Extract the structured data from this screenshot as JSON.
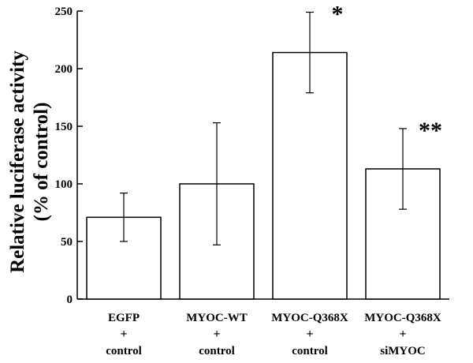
{
  "chart_data": {
    "type": "bar",
    "ylabel_line1": "Relative luciferase activity",
    "ylabel_line2": "(% of control)",
    "ylim": [
      0,
      250
    ],
    "yticks": [
      0,
      50,
      100,
      150,
      200,
      250
    ],
    "grid": false,
    "categories": [
      {
        "top": "EGFP",
        "mid": "+",
        "bottom": "control"
      },
      {
        "top": "MYOC-WT",
        "mid": "+",
        "bottom": "control"
      },
      {
        "top": "MYOC-Q368X",
        "mid": "+",
        "bottom": "control"
      },
      {
        "top": "MYOC-Q368X",
        "mid": "+",
        "bottom": "siMYOC"
      }
    ],
    "values": [
      71,
      100,
      214,
      113
    ],
    "error_low": [
      50,
      47,
      179,
      78
    ],
    "error_high": [
      92,
      153,
      249,
      148
    ],
    "annotations": [
      "",
      "",
      "*",
      "**"
    ]
  }
}
